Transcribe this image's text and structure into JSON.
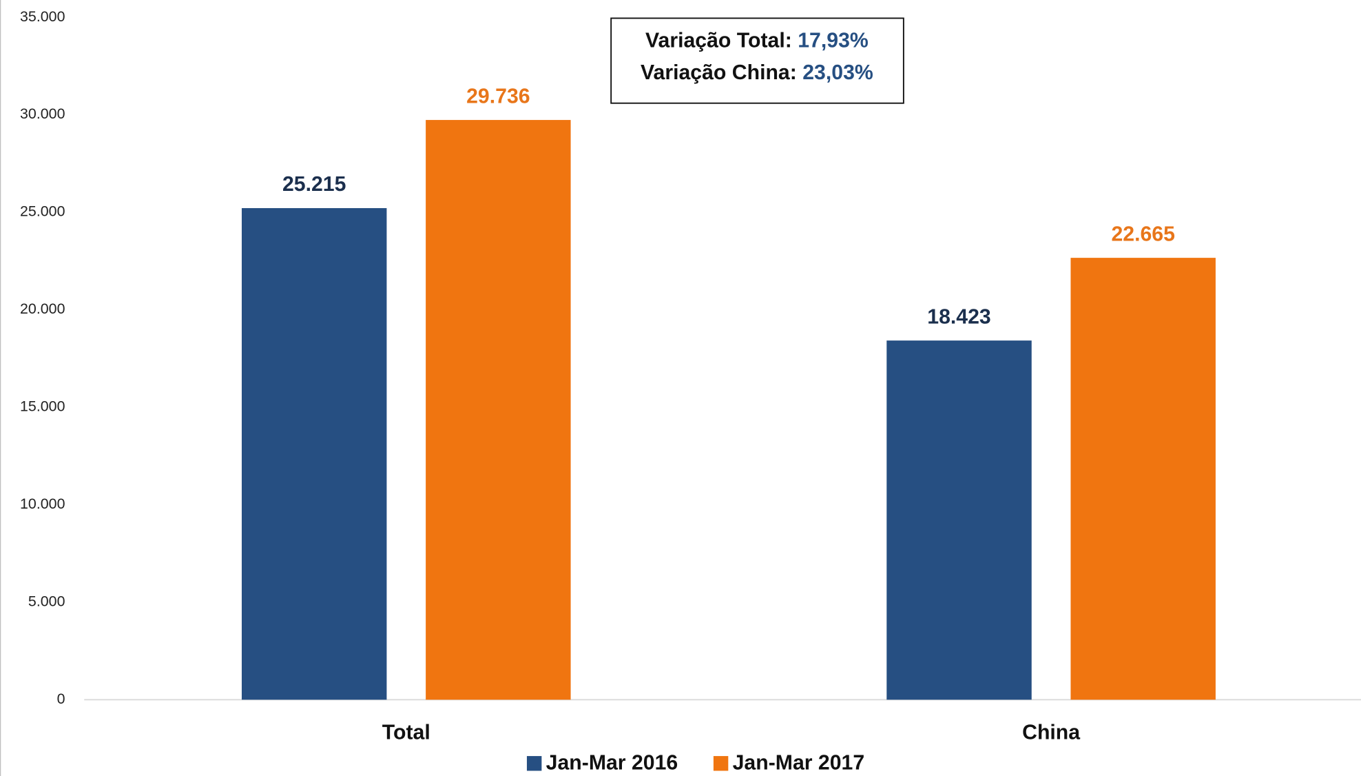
{
  "chart_data": {
    "type": "bar",
    "categories": [
      "Total",
      "China"
    ],
    "series": [
      {
        "name": "Jan-Mar 2016",
        "color": "#264f82",
        "label_color": "#1b2f4d",
        "values": [
          25215,
          18423
        ],
        "value_labels": [
          "25.215",
          "18.423"
        ]
      },
      {
        "name": "Jan-Mar 2017",
        "color": "#f07510",
        "label_color": "#e8761a",
        "values": [
          29736,
          22665
        ],
        "value_labels": [
          "29.736",
          "22.665"
        ]
      }
    ],
    "ylim": [
      0,
      35000
    ],
    "yticks": [
      0,
      {
        "value": 5000,
        "label": "5.000"
      },
      {
        "value": 10000,
        "label": "10.000"
      },
      {
        "value": 15000,
        "label": "15.000"
      },
      {
        "value": 20000,
        "label": "20.000"
      },
      {
        "value": 25000,
        "label": "25.000"
      },
      {
        "value": 30000,
        "label": "30.000"
      },
      {
        "value": 35000,
        "label": "35.000"
      }
    ],
    "grid": false,
    "legend": "bottom",
    "annotations": [
      {
        "label": "Variação Total:",
        "value": "17,93%"
      },
      {
        "label": "Variação China:",
        "value": "23,03%"
      }
    ]
  }
}
